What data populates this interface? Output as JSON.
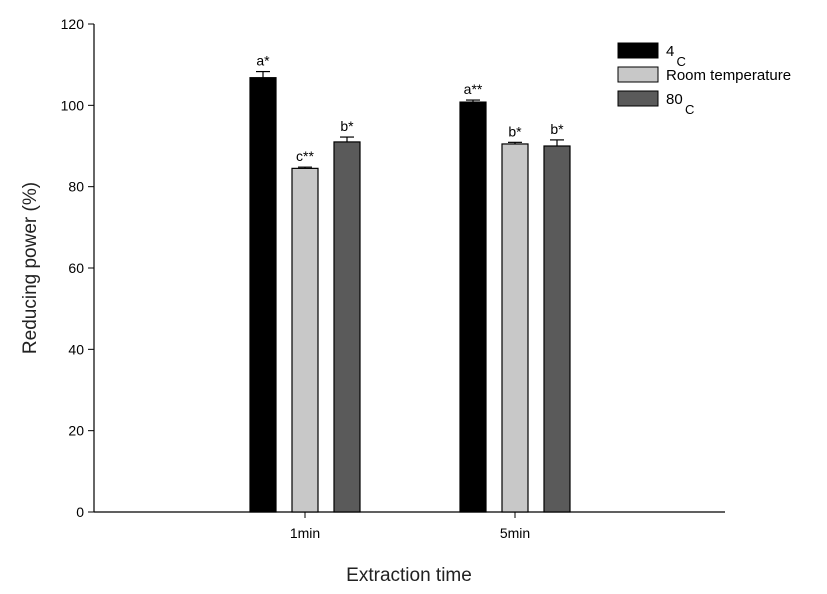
{
  "chart_data": {
    "type": "bar",
    "title": "",
    "xlabel": "Extraction time",
    "ylabel": "Reducing power (%)",
    "ylim": [
      0,
      120
    ],
    "yticks": [
      0,
      20,
      40,
      60,
      80,
      100,
      120
    ],
    "categories": [
      "1min",
      "5min"
    ],
    "series": [
      {
        "name": "4",
        "name_sub": "C",
        "color": "#000000",
        "values": [
          106.8,
          100.8
        ],
        "errors": [
          1.5,
          0.5
        ],
        "labels": [
          "a*",
          "a**"
        ]
      },
      {
        "name": "Room temperature",
        "name_sub": "",
        "color": "#c8c8c8",
        "values": [
          84.5,
          90.5
        ],
        "errors": [
          0.3,
          0.4
        ],
        "labels": [
          "c**",
          "b*"
        ]
      },
      {
        "name": "80",
        "name_sub": "C",
        "color": "#5a5a5a",
        "values": [
          91.0,
          90.0
        ],
        "errors": [
          1.2,
          1.5
        ],
        "labels": [
          "b*",
          "b*"
        ]
      }
    ],
    "grid": false,
    "legend_position": "top-right"
  }
}
